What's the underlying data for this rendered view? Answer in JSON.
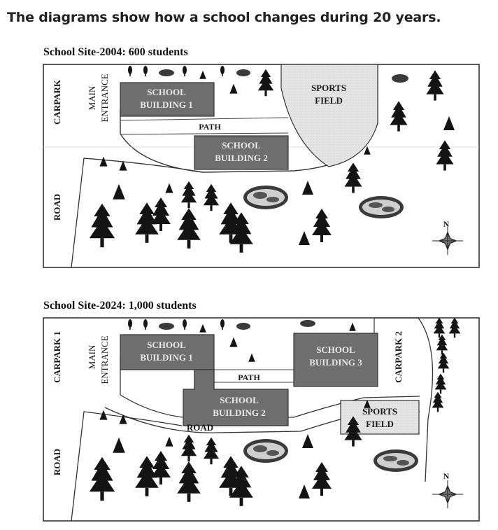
{
  "heading": "The diagrams show how a school changes during 20 years.",
  "colors": {
    "building": "#6e6e6e",
    "field": "#e2e2e2",
    "tree": "#141414",
    "ink": "#1a1a1a"
  },
  "maps": [
    {
      "title": "School Site-2004: 600 students",
      "labels": {
        "carpark": "CARPARK",
        "main": "MAIN",
        "entrance": "ENTRANCE",
        "road": "ROAD",
        "school1_line1": "SCHOOL",
        "school1_line2": "BUILDING 1",
        "school2_line1": "SCHOOL",
        "school2_line2": "BUILDING 2",
        "path": "PATH",
        "sports_line1": "SPORTS",
        "sports_line2": "FIELD",
        "north": "N"
      }
    },
    {
      "title": "School Site-2024: 1,000 students",
      "labels": {
        "carpark1": "CARPARK 1",
        "carpark2": "CARPARK 2",
        "main": "MAIN",
        "entrance": "ENTRANCE",
        "road_left": "ROAD",
        "road_inner": "ROAD",
        "school1_line1": "SCHOOL",
        "school1_line2": "BUILDING 1",
        "school2_line1": "SCHOOL",
        "school2_line2": "BUILDING 2",
        "school3_line1": "SCHOOL",
        "school3_line2": "BUILDING 3",
        "path": "PATH",
        "sports_line1": "SPORTS",
        "sports_line2": "FIELD",
        "north": "N"
      }
    }
  ]
}
